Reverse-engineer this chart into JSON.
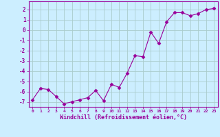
{
  "x": [
    0,
    1,
    2,
    3,
    4,
    5,
    6,
    7,
    8,
    9,
    10,
    11,
    12,
    13,
    14,
    15,
    16,
    17,
    18,
    19,
    20,
    21,
    22,
    23
  ],
  "y": [
    -6.8,
    -5.7,
    -5.8,
    -6.5,
    -7.2,
    -7.0,
    -6.8,
    -6.6,
    -5.9,
    -6.9,
    -5.3,
    -5.6,
    -4.2,
    -2.5,
    -2.6,
    -0.2,
    -1.3,
    0.8,
    1.7,
    1.7,
    1.4,
    1.6,
    2.0,
    2.1
  ],
  "line_color": "#990099",
  "marker": "D",
  "marker_size": 2.5,
  "bg_color": "#cceeff",
  "grid_color": "#aacccc",
  "xlabel": "Windchill (Refroidissement éolien,°C)",
  "xlabel_color": "#990099",
  "tick_color": "#990099",
  "ylim": [
    -7.5,
    2.8
  ],
  "xlim": [
    -0.5,
    23.5
  ],
  "yticks": [
    -7,
    -6,
    -5,
    -4,
    -3,
    -2,
    -1,
    0,
    1,
    2
  ],
  "xticks": [
    0,
    1,
    2,
    3,
    4,
    5,
    6,
    7,
    8,
    9,
    10,
    11,
    12,
    13,
    14,
    15,
    16,
    17,
    18,
    19,
    20,
    21,
    22,
    23
  ]
}
